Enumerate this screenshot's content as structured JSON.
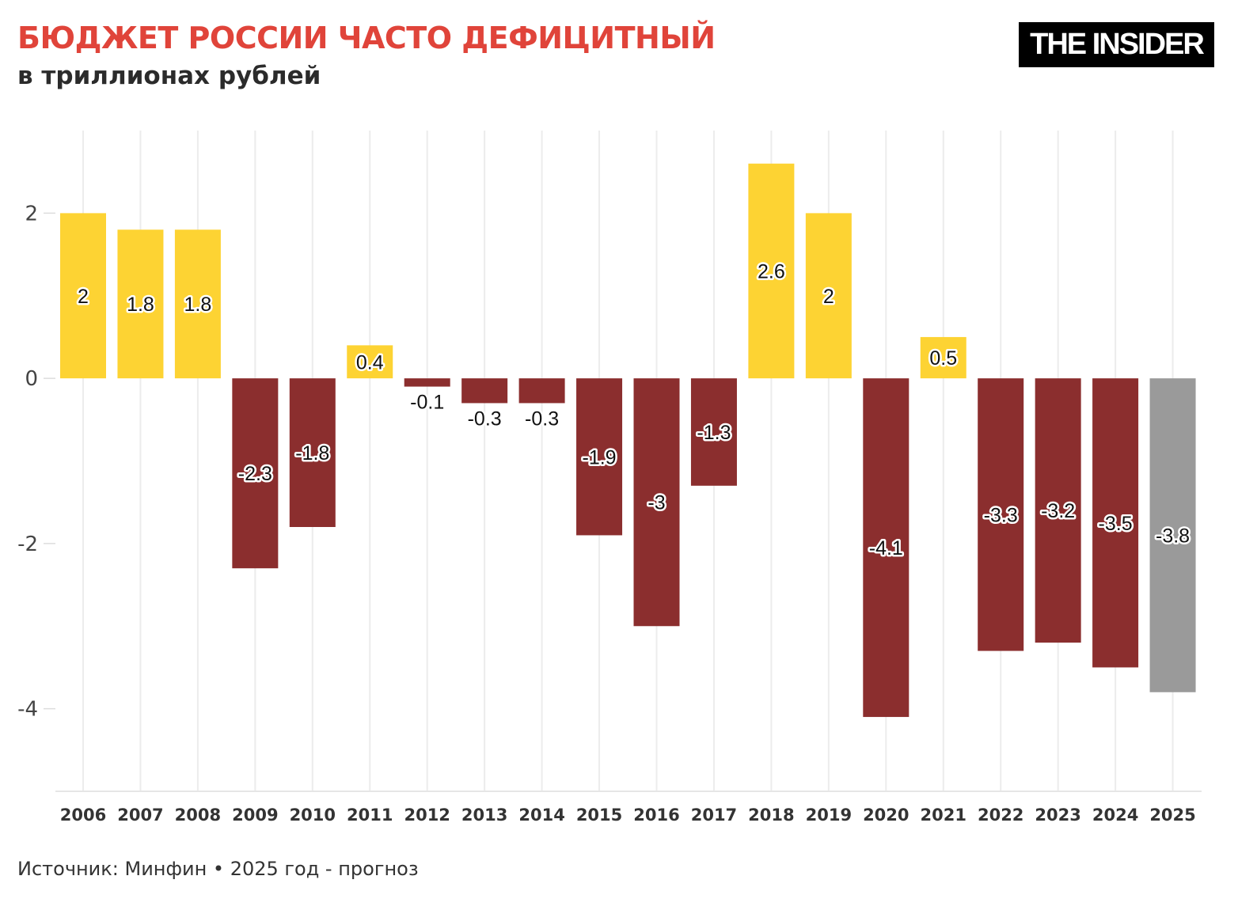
{
  "header": {
    "title": "БЮДЖЕТ РОССИИ ЧАСТО ДЕФИЦИТНЫЙ",
    "subtitle": "в триллионах рублей",
    "logo": "THE INSIDER"
  },
  "footer": {
    "source": "Источник: Минфин • 2025 год - прогноз"
  },
  "colors": {
    "surplus": "#FDD333",
    "deficit": "#8B2E2E",
    "forecast": "#9A9A9A",
    "title": "#E0443A"
  },
  "chart_data": {
    "type": "bar",
    "categories": [
      "2006",
      "2007",
      "2008",
      "2009",
      "2010",
      "2011",
      "2012",
      "2013",
      "2014",
      "2015",
      "2016",
      "2017",
      "2018",
      "2019",
      "2020",
      "2021",
      "2022",
      "2023",
      "2024",
      "2025"
    ],
    "values": [
      2,
      1.8,
      1.8,
      -2.3,
      -1.8,
      0.4,
      -0.1,
      -0.3,
      -0.3,
      -1.9,
      -3,
      -1.3,
      2.6,
      2,
      -4.1,
      0.5,
      -3.3,
      -3.2,
      -3.5,
      -3.8
    ],
    "forecast": [
      "2025"
    ],
    "ylim": [
      -5,
      3
    ],
    "yticks": [
      -4,
      -2,
      0,
      2
    ],
    "xlabel": "",
    "ylabel": "",
    "grid": "vertical",
    "legend": "none"
  }
}
